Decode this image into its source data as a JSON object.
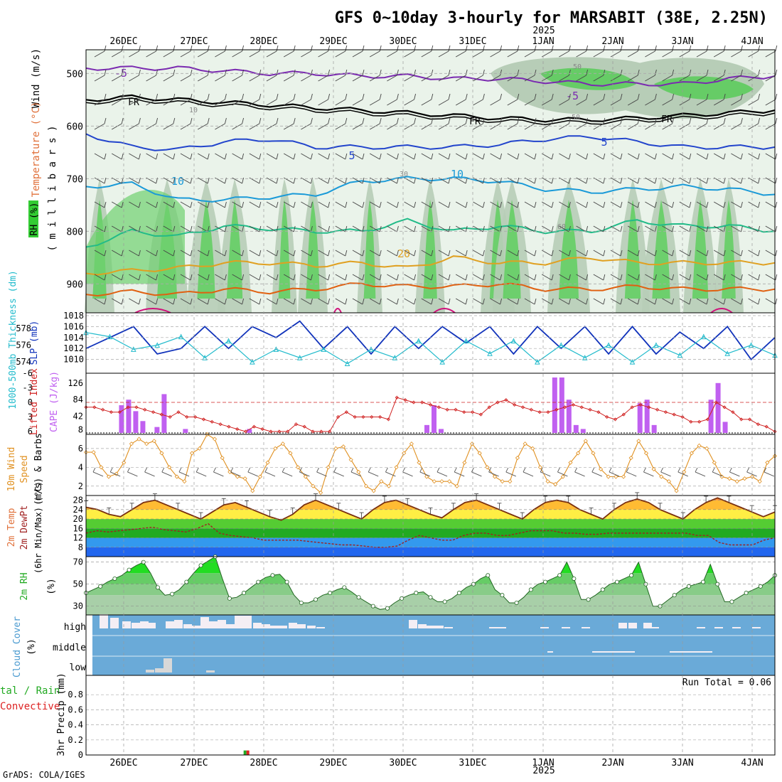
{
  "title": "GFS 0~10day 3-hourly for MARSABIT (38E, 2.25N)",
  "year_label": "2025",
  "footer": "GrADS: COLA/IGES",
  "run_total": "Run Total = 0.06",
  "date_labels": [
    "26DEC",
    "27DEC",
    "28DEC",
    "29DEC",
    "30DEC",
    "31DEC",
    "1JAN",
    "2JAN",
    "3JAN",
    "4JAN"
  ],
  "colors": {
    "temperature": "#e0703a",
    "wind": "#6a3fa0",
    "rh_fill": "#33cc33",
    "slp": "#1133bb",
    "thickness": "#22bbcc",
    "cape": "#c060f0",
    "lifted_index": "#d02020",
    "wind10m": "#e09020",
    "cloud_bg": "#6aaad8",
    "cloud_fill": "#f4eef4",
    "precip_green": "#22aa22",
    "precip_red": "#dd2222"
  },
  "panel_labels": {
    "upper": [
      {
        "text": "Wind (m/s)",
        "color": "#000000"
      },
      {
        "text": "Temperature (°C)",
        "color": "#e0703a"
      },
      {
        "text": "RH (%)",
        "color": "#22aa22"
      }
    ],
    "upper_sub": "( m i l l i b a r s )",
    "thickness": "1000-500mb Thickness (dm)",
    "slp": "SLP (mb)",
    "lifted": "Lifted Index",
    "cape": "CAPE (J/kg)",
    "wind10_a": "10m Wind",
    "wind10_b": "Speed",
    "wind10_c": "(m/s) & Barbs",
    "temp_a": "2m Temp",
    "temp_b": "2m DewPt",
    "temp_c": "(6hr Min/Max) (°C)",
    "rh_a": "2m RH",
    "rh_b": "(%)",
    "cloud_a": "Cloud Cover",
    "cloud_b": "(%)",
    "precip_a": "tal / Rain",
    "precip_b": "Convective",
    "precip_c": "3hr Precip (mm)"
  },
  "contour_labels": {
    "freezing": "FR",
    "neg5": "-5",
    "pos5": "5",
    "pos10": "10",
    "pos20": "20",
    "rh50": "50",
    "rh30": "30",
    "rh10": "10",
    "rh60": "60"
  },
  "cloud_levels": [
    "high",
    "middle",
    "low"
  ],
  "chart_data": {
    "type": "meteogram",
    "x_ticks": [
      "26DEC",
      "27DEC",
      "28DEC",
      "29DEC",
      "30DEC",
      "31DEC",
      "1JAN",
      "2JAN",
      "3JAN",
      "4JAN"
    ],
    "panels": [
      {
        "name": "pressure_cross_section",
        "ylabel": "millibars",
        "ylim": [
          955,
          455
        ],
        "yticks": [
          500,
          600,
          700,
          800,
          900
        ],
        "contours": [
          {
            "level": "-5",
            "pressure": [
              490,
              490,
              490,
              495,
              500,
              500,
              505,
              505,
              510,
              510,
              515,
              520,
              520,
              520,
              510,
              505
            ],
            "color": "#7a2ab0"
          },
          {
            "level": "FR",
            "pressure": [
              550,
              545,
              550,
              555,
              560,
              565,
              570,
              575,
              580,
              585,
              588,
              588,
              585,
              580,
              575,
              570
            ],
            "color": "#000000"
          },
          {
            "level": "5",
            "pressure": [
              615,
              640,
              645,
              630,
              625,
              640,
              640,
              640,
              640,
              635,
              625,
              620,
              630,
              640,
              640,
              640
            ],
            "color": "#2244cc"
          },
          {
            "level": "10",
            "pressure": [
              715,
              710,
              740,
              740,
              735,
              730,
              705,
              700,
              700,
              705,
              720,
              725,
              720,
              715,
              720,
              730
            ],
            "color": "#1a9ad8"
          },
          {
            "level": "15",
            "pressure": [
              830,
              800,
              810,
              790,
              795,
              800,
              800,
              780,
              800,
              790,
              800,
              800,
              780,
              790,
              790,
              800
            ],
            "color": "#22bb88"
          },
          {
            "level": "20",
            "pressure": [
              880,
              875,
              870,
              860,
              860,
              865,
              860,
              870,
              850,
              860,
              860,
              850,
              860,
              860,
              860,
              860
            ],
            "color": "#e0a020"
          },
          {
            "level": "25",
            "pressure": [
              920,
              915,
              920,
              910,
              915,
              910,
              900,
              905,
              905,
              900,
              910,
              910,
              905,
              910,
              910,
              910
            ],
            "color": "#e06010"
          }
        ]
      },
      {
        "name": "slp_thickness",
        "series": [
          {
            "name": "SLP (mb)",
            "color": "#1133bb",
            "ylim": [
              1008,
              1018
            ],
            "values": [
              1012,
              1014,
              1016,
              1011,
              1012,
              1016,
              1012,
              1016,
              1014,
              1017,
              1012,
              1016,
              1011,
              1016,
              1012,
              1016,
              1013,
              1016,
              1011,
              1016,
              1012,
              1016,
              1011,
              1016,
              1011,
              1015,
              1012,
              1016,
              1010,
              1014
            ]
          },
          {
            "name": "1000-500mb Thickness (dm)",
            "color": "#22bbcc",
            "ylim": [
              573,
              579.5
            ],
            "values": [
              577.5,
              577,
              575.5,
              576,
              577,
              574.5,
              576.5,
              574,
              575.5,
              574.5,
              575.5,
              573.8,
              575.5,
              574.5,
              576.5,
              574,
              576.5,
              575,
              576.5,
              574,
              576,
              574.5,
              576,
              574,
              576,
              574.8,
              577,
              575,
              576,
              574.8
            ]
          }
        ]
      },
      {
        "name": "cape_lifted_index",
        "series": [
          {
            "name": "CAPE (J/kg)",
            "type": "bar",
            "color": "#c060f0",
            "ylim": [
              0,
              140
            ],
            "values": [
              0,
              0,
              0,
              0,
              0,
              70,
              84,
              55,
              30,
              0,
              15,
              98,
              0,
              0,
              10,
              0,
              0,
              0,
              0,
              0,
              0,
              0,
              0,
              10,
              0,
              0,
              0,
              0,
              0,
              0,
              0,
              0,
              0,
              0,
              0,
              0,
              0,
              0,
              0,
              0,
              0,
              0,
              0,
              0,
              0,
              0,
              0,
              0,
              20,
              70,
              10,
              0,
              0,
              0,
              0,
              0,
              0,
              0,
              0,
              0,
              0,
              0,
              0,
              0,
              0,
              0,
              140,
              140,
              84,
              20,
              10,
              0,
              0,
              0,
              0,
              0,
              0,
              0,
              75,
              84,
              20,
              0,
              0,
              0,
              0,
              0,
              0,
              0,
              84,
              126,
              28,
              0,
              0,
              0,
              0,
              0,
              0,
              0
            ]
          },
          {
            "name": "Lifted Index",
            "type": "line",
            "color": "#d02020",
            "ylim": [
              -6,
              6
            ],
            "values": [
              1,
              1,
              1.5,
              2,
              2,
              1,
              1,
              1.5,
              2,
              2.5,
              3,
              2,
              3,
              3,
              3.5,
              4,
              4.5,
              5,
              5.5,
              6,
              5,
              5.5,
              6,
              6,
              6,
              4.5,
              5,
              6,
              6,
              6,
              3,
              2,
              3,
              3,
              3,
              3,
              3.5,
              -1,
              -0.5,
              0,
              0,
              0.5,
              1,
              1.5,
              1.5,
              2,
              2,
              2.5,
              1,
              0,
              -0.5,
              0.5,
              1,
              1.5,
              2,
              2,
              1.5,
              1,
              0.5,
              1,
              1.5,
              2,
              3,
              3.5,
              2.5,
              1,
              0.5,
              1,
              1.5,
              2,
              2.5,
              3,
              4,
              4,
              3.5,
              0,
              1,
              2,
              3.5,
              3.5,
              4.5,
              5,
              6
            ]
          }
        ]
      },
      {
        "name": "wind10m",
        "ylabel": "(m/s)",
        "ylim": [
          1,
          7.5
        ],
        "series": [
          {
            "name": "Speed",
            "color": "#e09020",
            "values": [
              5.6,
              5.6,
              4,
              3,
              3.3,
              4.5,
              6.5,
              7,
              6.5,
              6.8,
              5.5,
              4,
              3,
              2.5,
              5.5,
              6,
              7.5,
              7,
              5,
              3.5,
              3,
              2.8,
              1.5,
              3,
              4.5,
              6,
              6.5,
              5.5,
              4,
              3,
              2,
              1.3,
              4,
              6,
              6.2,
              4.8,
              3.5,
              2,
              1.5,
              2.5,
              2,
              4,
              5.5,
              6.5,
              4.5,
              3,
              2.5,
              2.5,
              2.5,
              2,
              4.5,
              6.5,
              5.5,
              4,
              3,
              2.5,
              2.5,
              5,
              6.5,
              6,
              4,
              2.5,
              2.2,
              3,
              4.5,
              5.5,
              6.8,
              5.5,
              3.8,
              3,
              3,
              3,
              5,
              6.8,
              5.5,
              3.8,
              3,
              2.5,
              1.5,
              3.5,
              5.5,
              6.3,
              6,
              4.5,
              3,
              2.8,
              2.5,
              2.8,
              3,
              2.5,
              4.5,
              5.2
            ]
          }
        ]
      },
      {
        "name": "temp2m",
        "ylabel": "(°C)",
        "ylim": [
          4,
          30
        ],
        "yticks": [
          8,
          12,
          16,
          20,
          24,
          28
        ],
        "series": [
          {
            "name": "2m Temp",
            "color": "#7a3010",
            "values": [
              25,
              24,
              22,
              21,
              24,
              27,
              28,
              26,
              24,
              22,
              20,
              23,
              26,
              27,
              25,
              23,
              21,
              19.5,
              22,
              26,
              28,
              26,
              24,
              22,
              20,
              24,
              27,
              28,
              26,
              24,
              22,
              20.5,
              24,
              27,
              28,
              26,
              24,
              22,
              20,
              24,
              27,
              28,
              27,
              24,
              22,
              20,
              24,
              27,
              28.5,
              27,
              24,
              22,
              20,
              24,
              27,
              29,
              27,
              25,
              23,
              21,
              23
            ]
          },
          {
            "name": "2m DewPt",
            "color": "#a02020",
            "values": [
              14,
              15,
              14.5,
              15,
              15.5,
              16,
              16.5,
              15.5,
              15,
              14.5,
              16,
              18,
              14,
              13,
              12.5,
              12,
              11,
              11,
              11,
              11,
              10.5,
              10,
              9.5,
              9,
              9,
              8.5,
              8,
              8,
              8.5,
              11,
              13,
              12,
              11,
              11,
              13,
              14,
              14,
              13,
              13,
              14,
              15,
              15,
              15,
              14,
              14,
              13.5,
              13.5,
              14,
              14,
              14,
              14,
              14,
              14,
              14,
              14,
              13,
              13,
              10,
              9,
              9,
              9,
              11,
              12
            ]
          }
        ]
      },
      {
        "name": "rh2m",
        "ylabel": "(%)",
        "ylim": [
          22,
          75
        ],
        "yticks": [
          30,
          50,
          70
        ],
        "series": [
          {
            "name": "2m RH",
            "color": "#22aa22",
            "values": [
              42,
              45,
              48,
              52,
              55,
              58,
              63,
              67,
              70,
              60,
              47,
              40,
              41,
              45,
              52,
              60,
              67,
              71,
              75,
              55,
              37,
              38,
              42,
              47,
              52,
              56,
              58,
              59,
              52,
              40,
              33,
              33,
              36,
              40,
              42,
              45,
              47,
              43,
              38,
              34,
              30,
              27,
              28,
              33,
              37,
              40,
              42,
              43,
              38,
              34,
              34,
              37,
              42,
              47,
              50,
              55,
              58,
              45,
              40,
              33,
              33,
              38,
              45,
              50,
              52,
              55,
              58,
              70,
              55,
              36,
              36,
              40,
              45,
              50,
              52,
              55,
              58,
              70,
              50,
              30,
              30,
              35,
              40,
              45,
              48,
              50,
              52,
              68,
              50,
              34,
              34,
              38,
              42,
              45,
              48,
              52,
              58
            ]
          }
        ]
      },
      {
        "name": "cloud_cover",
        "categories": [
          "high",
          "middle",
          "low"
        ],
        "ylim": [
          0,
          100
        ]
      },
      {
        "name": "precip3hr",
        "ylabel": "3hr Precip (mm)",
        "ylim": [
          0,
          1.0
        ],
        "yticks": [
          0,
          0.2,
          0.4,
          0.6,
          0.8
        ],
        "series": [
          {
            "name": "Total / Rain",
            "color": "#22aa22",
            "type": "bar",
            "values": [
              0,
              0,
              0,
              0,
              0,
              0,
              0,
              0,
              0,
              0,
              0,
              0,
              0,
              0,
              0.06
            ]
          },
          {
            "name": "Convective",
            "color": "#dd2222",
            "type": "bar",
            "values": [
              0,
              0,
              0,
              0,
              0,
              0,
              0,
              0,
              0,
              0,
              0,
              0,
              0,
              0,
              0.06
            ]
          }
        ]
      }
    ]
  }
}
